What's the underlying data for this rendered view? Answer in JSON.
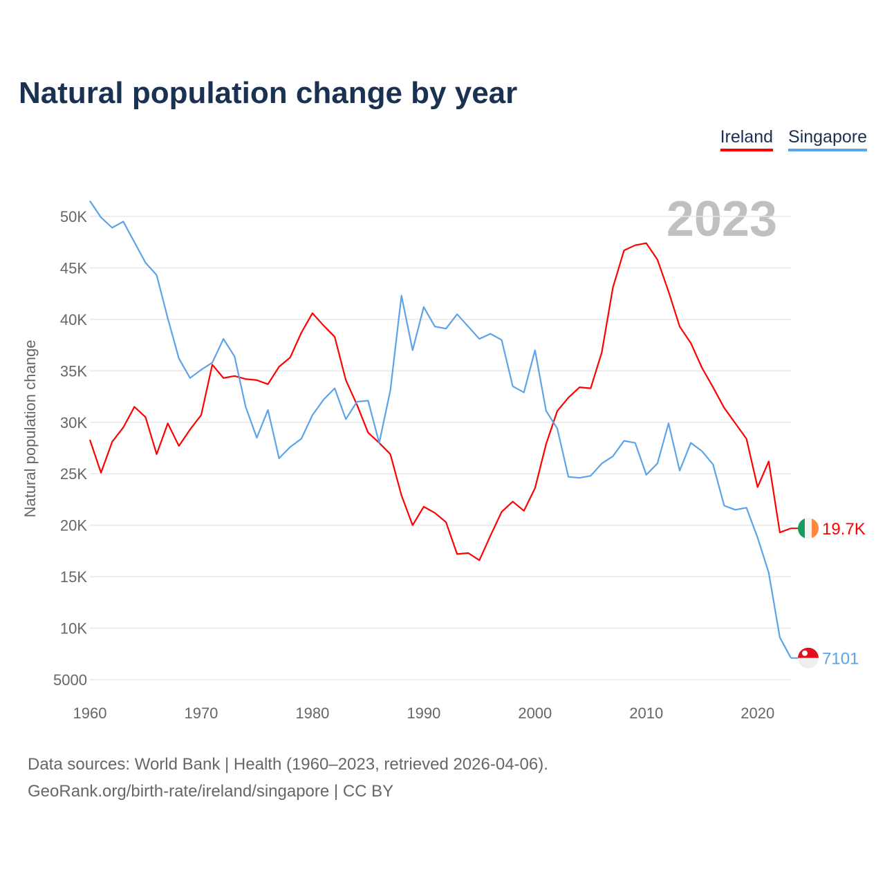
{
  "chart_data": {
    "type": "line",
    "title": "Natural population change by year",
    "xlabel": "",
    "ylabel": "Natural population change",
    "xlim": [
      1960,
      2023
    ],
    "ylim": [
      5000,
      52000
    ],
    "x_ticks": [
      1960,
      1970,
      1980,
      1990,
      2000,
      2010,
      2020
    ],
    "x_tick_labels": [
      "1960",
      "1970",
      "1980",
      "1990",
      "2000",
      "2010",
      "2020"
    ],
    "y_ticks": [
      5000,
      10000,
      15000,
      20000,
      25000,
      30000,
      35000,
      40000,
      45000,
      50000
    ],
    "y_tick_labels": [
      "5000",
      "10K",
      "15K",
      "20K",
      "25K",
      "30K",
      "35K",
      "40K",
      "45K",
      "50K"
    ],
    "grid": true,
    "legend_position": "top-right",
    "year_label": "2023",
    "x": [
      1960,
      1961,
      1962,
      1963,
      1964,
      1965,
      1966,
      1967,
      1968,
      1969,
      1970,
      1971,
      1972,
      1973,
      1974,
      1975,
      1976,
      1977,
      1978,
      1979,
      1980,
      1981,
      1982,
      1983,
      1984,
      1985,
      1986,
      1987,
      1988,
      1989,
      1990,
      1991,
      1992,
      1993,
      1994,
      1995,
      1996,
      1997,
      1998,
      1999,
      2000,
      2001,
      2002,
      2003,
      2004,
      2005,
      2006,
      2007,
      2008,
      2009,
      2010,
      2011,
      2012,
      2013,
      2014,
      2015,
      2016,
      2017,
      2018,
      2019,
      2020,
      2021,
      2022,
      2023
    ],
    "series": [
      {
        "name": "Ireland",
        "color": "#ff0000",
        "end_label": "19.7K",
        "values": [
          28300,
          25100,
          28100,
          29500,
          31500,
          30500,
          26900,
          29900,
          27700,
          29300,
          30700,
          35600,
          34300,
          34500,
          34200,
          34100,
          33700,
          35400,
          36300,
          38700,
          40600,
          39400,
          38300,
          34100,
          31700,
          29000,
          28000,
          26900,
          22900,
          20000,
          21800,
          21200,
          20300,
          17200,
          17300,
          16600,
          19000,
          21300,
          22300,
          21400,
          23600,
          27900,
          31100,
          32400,
          33400,
          33300,
          36800,
          43100,
          46700,
          47200,
          47400,
          45800,
          42700,
          39300,
          37700,
          35300,
          33400,
          31400,
          29900,
          28400,
          23700,
          26200,
          19300,
          19700
        ]
      },
      {
        "name": "Singapore",
        "color": "#5ba3e8",
        "end_label": "7101",
        "values": [
          51500,
          49900,
          48900,
          49500,
          47500,
          45500,
          44300,
          40100,
          36200,
          34300,
          35100,
          35800,
          38100,
          36400,
          31500,
          28500,
          31200,
          26500,
          27600,
          28400,
          30700,
          32200,
          33300,
          30300,
          32000,
          32100,
          28000,
          33100,
          42300,
          37000,
          41200,
          39300,
          39100,
          40500,
          39300,
          38100,
          38600,
          38000,
          33500,
          32900,
          37000,
          31100,
          29400,
          24700,
          24600,
          24800,
          26000,
          26700,
          28200,
          28000,
          24900,
          26000,
          29900,
          25300,
          28000,
          27200,
          25900,
          21900,
          21500,
          21700,
          18800,
          15400,
          9100,
          7101
        ]
      }
    ]
  },
  "footer": {
    "line1": "Data sources: World Bank | Health (1960–2023, retrieved 2026-04-06).",
    "line2": "GeoRank.org/birth-rate/ireland/singapore | CC BY"
  }
}
